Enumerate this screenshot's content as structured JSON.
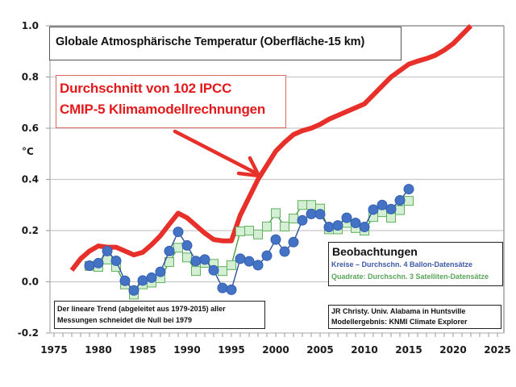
{
  "chart_data": {
    "type": "line",
    "title": "Globale Atmosphärische Temperatur (Oberfläche-15 km)",
    "xlabel": "",
    "ylabel": "°C",
    "xlim": [
      1975,
      2025
    ],
    "ylim": [
      -0.2,
      1.0
    ],
    "x_ticks": [
      1975,
      1980,
      1985,
      1990,
      1995,
      2000,
      2005,
      2010,
      2015,
      2020,
      2025
    ],
    "y_ticks": [
      -0.2,
      0.0,
      0.2,
      0.4,
      0.6,
      0.8,
      1.0
    ],
    "y_tick_labels": [
      "-0.2",
      "0.0",
      "0.2",
      "0.4",
      "0.6",
      "0.8",
      "1.0"
    ],
    "grid": "horizontal",
    "series": [
      {
        "name": "Durchschnitt von 102 IPCC CMIP-5 Klimamodellrechnungen",
        "style": "thick-line",
        "color": "#e8302a",
        "x": [
          1977,
          1978,
          1979,
          1980,
          1981,
          1982,
          1983,
          1984,
          1985,
          1986,
          1987,
          1988,
          1989,
          1990,
          1991,
          1992,
          1993,
          1994,
          1995,
          1996,
          1997,
          1998,
          1999,
          2000,
          2001,
          2002,
          2003,
          2004,
          2005,
          2006,
          2007,
          2008,
          2009,
          2010,
          2011,
          2012,
          2013,
          2014,
          2015,
          2016,
          2017,
          2018,
          2019,
          2020,
          2021,
          2022
        ],
        "values": [
          0.045,
          0.09,
          0.12,
          0.14,
          0.135,
          0.135,
          0.12,
          0.105,
          0.115,
          0.145,
          0.18,
          0.225,
          0.268,
          0.25,
          0.22,
          0.19,
          0.165,
          0.16,
          0.16,
          0.26,
          0.33,
          0.4,
          0.455,
          0.51,
          0.545,
          0.575,
          0.59,
          0.6,
          0.615,
          0.635,
          0.65,
          0.665,
          0.68,
          0.695,
          0.73,
          0.765,
          0.8,
          0.825,
          0.85,
          0.862,
          0.872,
          0.885,
          0.905,
          0.93,
          0.965,
          1.0
        ]
      },
      {
        "name": "Kreise – Durchschn. 4 Ballon-Datensätze",
        "style": "circles",
        "color": "#4472c4",
        "x": [
          1979,
          1980,
          1981,
          1982,
          1983,
          1984,
          1985,
          1986,
          1987,
          1988,
          1989,
          1990,
          1991,
          1992,
          1993,
          1994,
          1995,
          1996,
          1997,
          1998,
          1999,
          2000,
          2001,
          2002,
          2003,
          2004,
          2005,
          2006,
          2007,
          2008,
          2009,
          2010,
          2011,
          2012,
          2013,
          2014,
          2015
        ],
        "values": [
          0.063,
          0.073,
          0.12,
          0.082,
          0.004,
          -0.034,
          0.005,
          0.016,
          0.039,
          0.12,
          0.195,
          0.142,
          0.081,
          0.087,
          0.045,
          -0.024,
          -0.031,
          0.09,
          0.08,
          0.065,
          0.102,
          0.165,
          0.118,
          0.155,
          0.24,
          0.265,
          0.264,
          0.214,
          0.22,
          0.25,
          0.23,
          0.214,
          0.282,
          0.3,
          0.284,
          0.318,
          0.362
        ]
      },
      {
        "name": "Quadrate: Durchschn. 3 Satelliten-Datensätze",
        "style": "squares",
        "color": "#5aa55a",
        "x": [
          1979,
          1980,
          1981,
          1982,
          1983,
          1984,
          1985,
          1986,
          1987,
          1988,
          1989,
          1990,
          1991,
          1992,
          1993,
          1994,
          1995,
          1996,
          1997,
          1998,
          1999,
          2000,
          2001,
          2002,
          2003,
          2004,
          2005,
          2006,
          2007,
          2008,
          2009,
          2010,
          2011,
          2012,
          2013,
          2014,
          2015
        ],
        "values": [
          0.062,
          0.058,
          0.087,
          0.058,
          -0.01,
          -0.05,
          -0.01,
          -0.003,
          0.014,
          0.077,
          0.133,
          0.095,
          0.042,
          0.074,
          0.07,
          0.042,
          0.065,
          0.197,
          0.2,
          0.185,
          0.216,
          0.268,
          0.216,
          0.247,
          0.3,
          0.3,
          0.286,
          0.205,
          0.205,
          0.23,
          0.21,
          0.2,
          0.253,
          0.272,
          0.25,
          0.28,
          0.316
        ]
      }
    ],
    "annotations": {
      "model_label_line1": "Durchschnitt von 102 IPCC",
      "model_label_line2": "CMIP-5 Klimamodellrechnungen",
      "legend_title": "Beobachtungen",
      "legend_circles": "Kreise – Durchschn. 4 Ballon-Datensätze",
      "legend_squares": "Quadrate: Durchschn. 3 Satelliten-Datensätze",
      "trend_line1": "Der lineare Trend (abgeleitet aus 1979-2015) aller",
      "trend_line2": "Messungen schneidet die Null bei 1979",
      "credit_line1": "JR Christy. Univ. Alabama in Huntsville",
      "credit_line2": "Modellergebnis: KNMI Climate Explorer",
      "arrow": "points from model label to model curve near 1998"
    },
    "legend_placement": "bottom-right"
  }
}
